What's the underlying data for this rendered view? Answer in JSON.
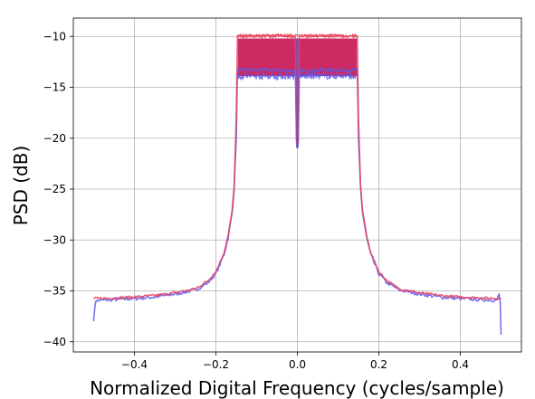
{
  "chart_data": {
    "type": "line",
    "title": "",
    "xlabel": "Normalized Digital Frequency (cycles/sample)",
    "ylabel": "PSD (dB)",
    "xlim": [
      -0.55,
      0.55
    ],
    "ylim": [
      -41,
      -8.2
    ],
    "xticks": [
      -0.4,
      -0.2,
      0.0,
      0.2,
      0.4
    ],
    "xtick_labels": [
      "−0.4",
      "−0.2",
      "0.0",
      "0.2",
      "0.4"
    ],
    "yticks": [
      -10,
      -15,
      -20,
      -25,
      -30,
      -35,
      -40
    ],
    "ytick_labels": [
      "−10",
      "−15",
      "−20",
      "−25",
      "−30",
      "−35",
      "−40"
    ],
    "grid": true,
    "legend": "none",
    "passband": {
      "edge": 0.146,
      "dc_notch_center": 0.0
    },
    "series": [
      {
        "color": "#5b5bf0",
        "points": [
          [
            -0.5,
            -37.8
          ],
          [
            -0.495,
            -35.95
          ],
          [
            -0.45,
            -35.85
          ],
          [
            -0.4,
            -35.75
          ],
          [
            -0.35,
            -35.6
          ],
          [
            -0.3,
            -35.3
          ],
          [
            -0.25,
            -34.9
          ],
          [
            -0.22,
            -34.2
          ],
          [
            -0.2,
            -33.3
          ],
          [
            -0.19,
            -32.4
          ],
          [
            -0.18,
            -31.4
          ],
          [
            -0.17,
            -29.8
          ],
          [
            -0.16,
            -27.3
          ],
          [
            -0.155,
            -24.8
          ],
          [
            -0.15,
            -20.0
          ],
          [
            -0.147,
            -13.3
          ],
          [
            -0.05,
            -13.3
          ],
          [
            -0.005,
            -13.4
          ],
          [
            -0.002,
            -20.5
          ],
          [
            -0.001,
            -21.0
          ],
          [
            0.001,
            -21.0
          ],
          [
            0.002,
            -20.5
          ],
          [
            0.005,
            -13.4
          ],
          [
            0.05,
            -13.3
          ],
          [
            0.147,
            -13.3
          ],
          [
            0.15,
            -20.0
          ],
          [
            0.155,
            -24.8
          ],
          [
            0.16,
            -27.3
          ],
          [
            0.17,
            -29.8
          ],
          [
            0.18,
            -31.4
          ],
          [
            0.19,
            -32.4
          ],
          [
            0.2,
            -33.3
          ],
          [
            0.22,
            -34.2
          ],
          [
            0.25,
            -34.9
          ],
          [
            0.3,
            -35.3
          ],
          [
            0.35,
            -35.6
          ],
          [
            0.4,
            -35.75
          ],
          [
            0.45,
            -35.85
          ],
          [
            0.49,
            -35.9
          ],
          [
            0.495,
            -35.3
          ],
          [
            0.498,
            -36.2
          ],
          [
            0.5,
            -39.3
          ]
        ],
        "band_fill_range": [
          -13.9,
          -10.2
        ]
      },
      {
        "color": "#e8425a",
        "points": [
          [
            -0.5,
            -35.75
          ],
          [
            -0.45,
            -35.7
          ],
          [
            -0.4,
            -35.6
          ],
          [
            -0.35,
            -35.45
          ],
          [
            -0.3,
            -35.2
          ],
          [
            -0.25,
            -34.8
          ],
          [
            -0.22,
            -34.0
          ],
          [
            -0.2,
            -33.1
          ],
          [
            -0.19,
            -32.2
          ],
          [
            -0.18,
            -31.2
          ],
          [
            -0.17,
            -29.6
          ],
          [
            -0.16,
            -27.1
          ],
          [
            -0.155,
            -24.5
          ],
          [
            -0.15,
            -18.0
          ],
          [
            -0.147,
            -10.0
          ],
          [
            -0.05,
            -9.9
          ],
          [
            -0.005,
            -10.0
          ],
          [
            -0.002,
            -20.2
          ],
          [
            -0.001,
            -20.6
          ],
          [
            0.001,
            -20.6
          ],
          [
            0.002,
            -20.2
          ],
          [
            0.005,
            -10.0
          ],
          [
            0.05,
            -9.9
          ],
          [
            0.147,
            -10.0
          ],
          [
            0.15,
            -18.0
          ],
          [
            0.155,
            -24.5
          ],
          [
            0.16,
            -27.1
          ],
          [
            0.17,
            -29.6
          ],
          [
            0.18,
            -31.2
          ],
          [
            0.19,
            -32.2
          ],
          [
            0.2,
            -33.1
          ],
          [
            0.22,
            -34.0
          ],
          [
            0.25,
            -34.8
          ],
          [
            0.3,
            -35.2
          ],
          [
            0.35,
            -35.45
          ],
          [
            0.4,
            -35.6
          ],
          [
            0.45,
            -35.7
          ],
          [
            0.5,
            -35.75
          ]
        ]
      }
    ]
  }
}
